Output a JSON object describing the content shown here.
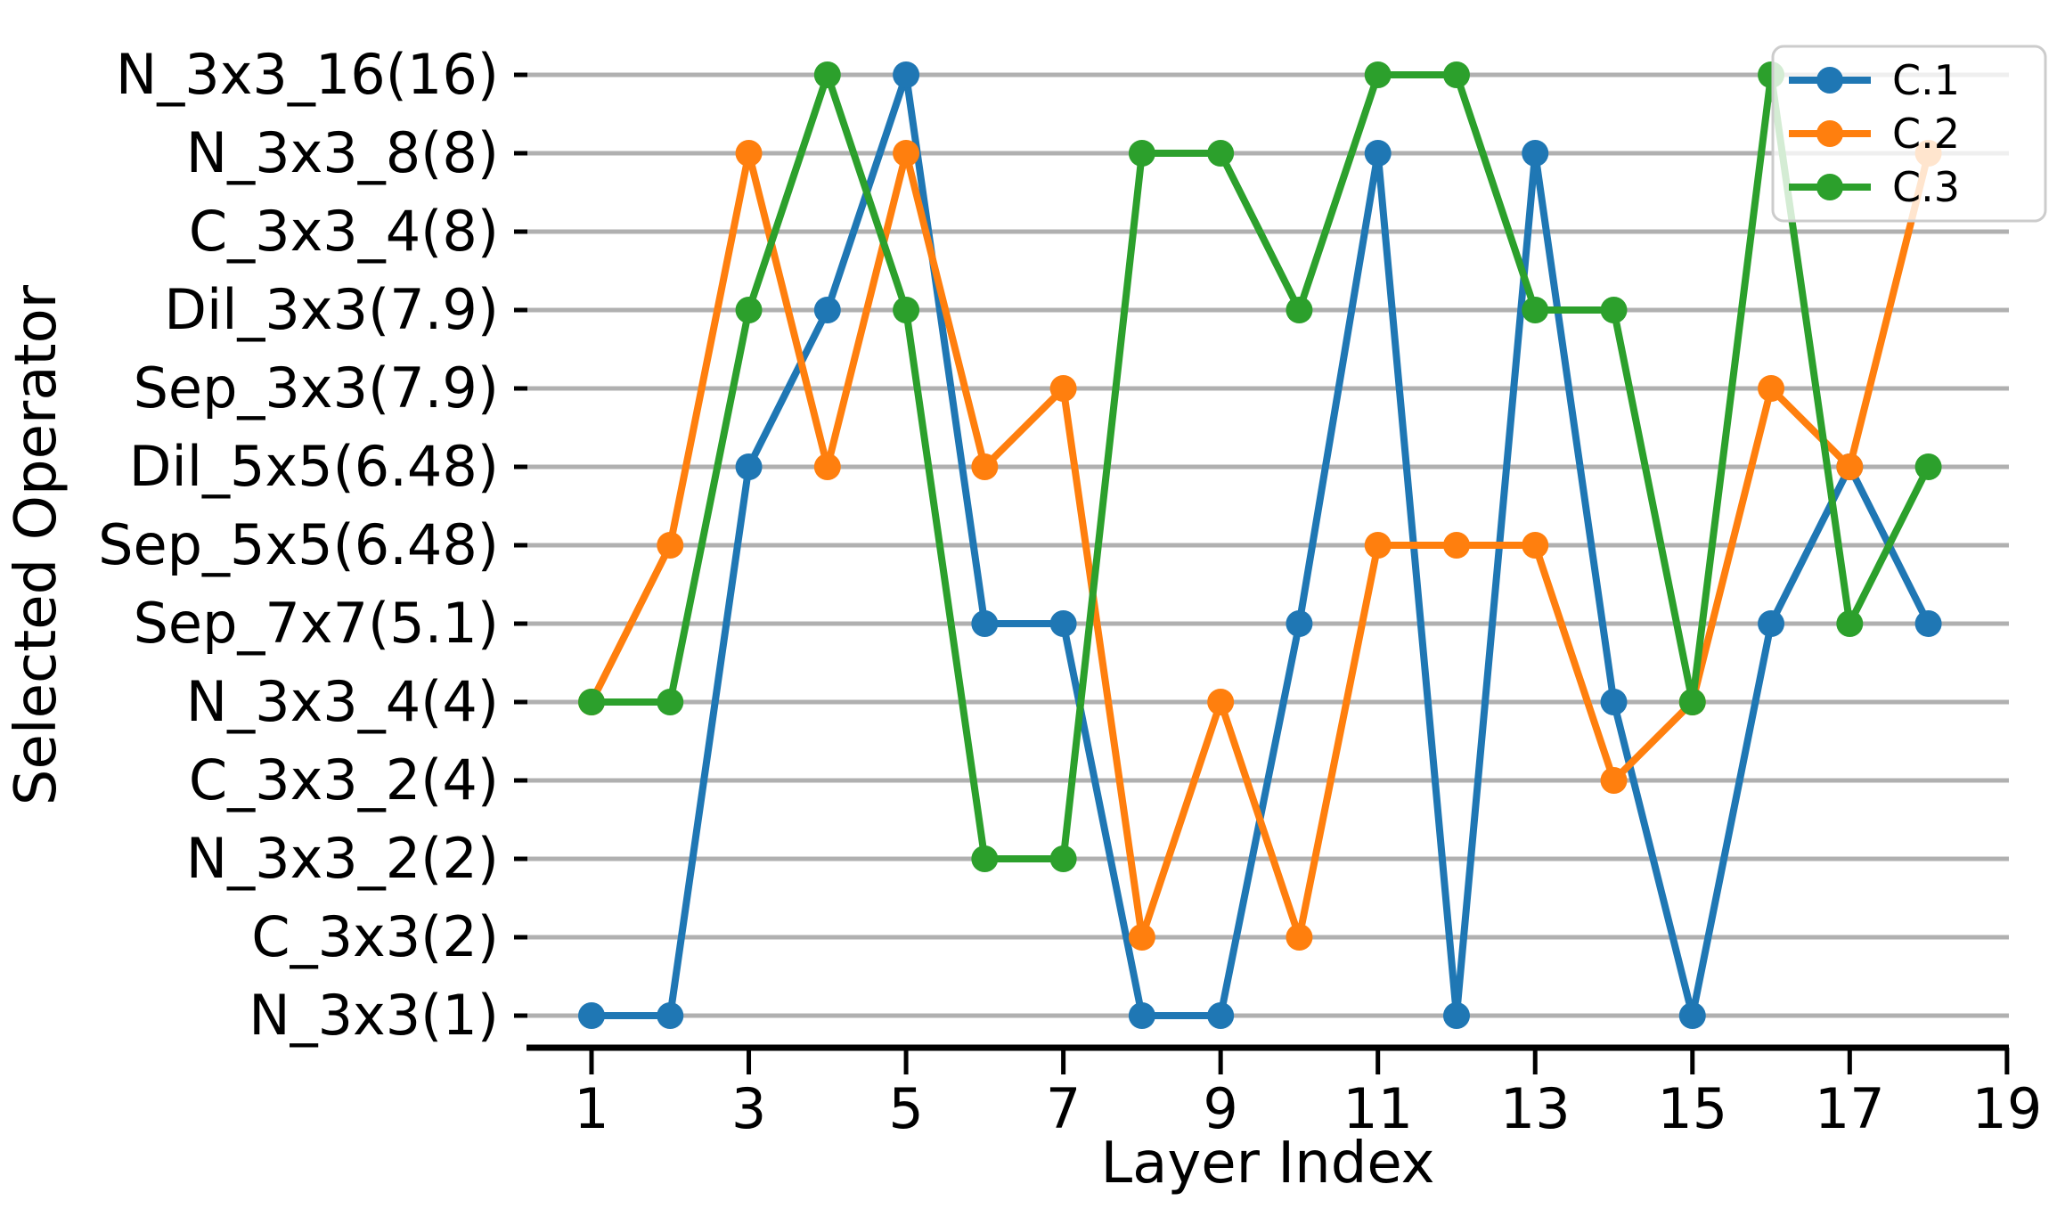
{
  "figure": {
    "background": "#ffffff",
    "grid_color": "#b0b0b0",
    "spine_color": "#000000"
  },
  "chart_data": {
    "type": "line",
    "title": "",
    "xlabel": "Layer Index",
    "ylabel": "Selected Operator",
    "grid": "horizontal",
    "legend_position": "upper right",
    "x": [
      1,
      2,
      3,
      4,
      5,
      6,
      7,
      8,
      9,
      10,
      11,
      12,
      13,
      14,
      15,
      16,
      17,
      18
    ],
    "xticks": [
      1,
      3,
      5,
      7,
      9,
      11,
      13,
      15,
      17,
      19
    ],
    "xlim": [
      0.15,
      19.0
    ],
    "y_categories": [
      "N_3x3(1)",
      "C_3x3(2)",
      "N_3x3_2(2)",
      "C_3x3_2(4)",
      "N_3x3_4(4)",
      "Sep_7x7(5.1)",
      "Sep_5x5(6.48)",
      "Dil_5x5(6.48)",
      "Sep_3x3(7.9)",
      "Dil_3x3(7.9)",
      "C_3x3_4(8)",
      "N_3x3_8(8)",
      "N_3x3_16(16)"
    ],
    "series": [
      {
        "name": "C.1",
        "color": "#1f77b4",
        "values": [
          "N_3x3(1)",
          "N_3x3(1)",
          "Dil_5x5(6.48)",
          "Dil_3x3(7.9)",
          "N_3x3_16(16)",
          "Sep_7x7(5.1)",
          "Sep_7x7(5.1)",
          "N_3x3(1)",
          "N_3x3(1)",
          "Sep_7x7(5.1)",
          "N_3x3_8(8)",
          "N_3x3(1)",
          "N_3x3_8(8)",
          "N_3x3_4(4)",
          "N_3x3(1)",
          "Sep_7x7(5.1)",
          "Dil_5x5(6.48)",
          "Sep_7x7(5.1)"
        ]
      },
      {
        "name": "C.2",
        "color": "#ff7f0e",
        "values": [
          "N_3x3_4(4)",
          "Sep_5x5(6.48)",
          "N_3x3_8(8)",
          "Dil_5x5(6.48)",
          "N_3x3_8(8)",
          "Dil_5x5(6.48)",
          "Sep_3x3(7.9)",
          "C_3x3(2)",
          "N_3x3_4(4)",
          "C_3x3(2)",
          "Sep_5x5(6.48)",
          "Sep_5x5(6.48)",
          "Sep_5x5(6.48)",
          "C_3x3_2(4)",
          "N_3x3_4(4)",
          "Sep_3x3(7.9)",
          "Dil_5x5(6.48)",
          "N_3x3_8(8)"
        ]
      },
      {
        "name": "C.3",
        "color": "#2ca02c",
        "values": [
          "N_3x3_4(4)",
          "N_3x3_4(4)",
          "Dil_3x3(7.9)",
          "N_3x3_16(16)",
          "Dil_3x3(7.9)",
          "N_3x3_2(2)",
          "N_3x3_2(2)",
          "N_3x3_8(8)",
          "N_3x3_8(8)",
          "Dil_3x3(7.9)",
          "N_3x3_16(16)",
          "N_3x3_16(16)",
          "Dil_3x3(7.9)",
          "Dil_3x3(7.9)",
          "N_3x3_4(4)",
          "N_3x3_16(16)",
          "Sep_7x7(5.1)",
          "Dil_5x5(6.48)"
        ]
      }
    ],
    "legend_labels": [
      "C.1",
      "C.2",
      "C.3"
    ]
  }
}
